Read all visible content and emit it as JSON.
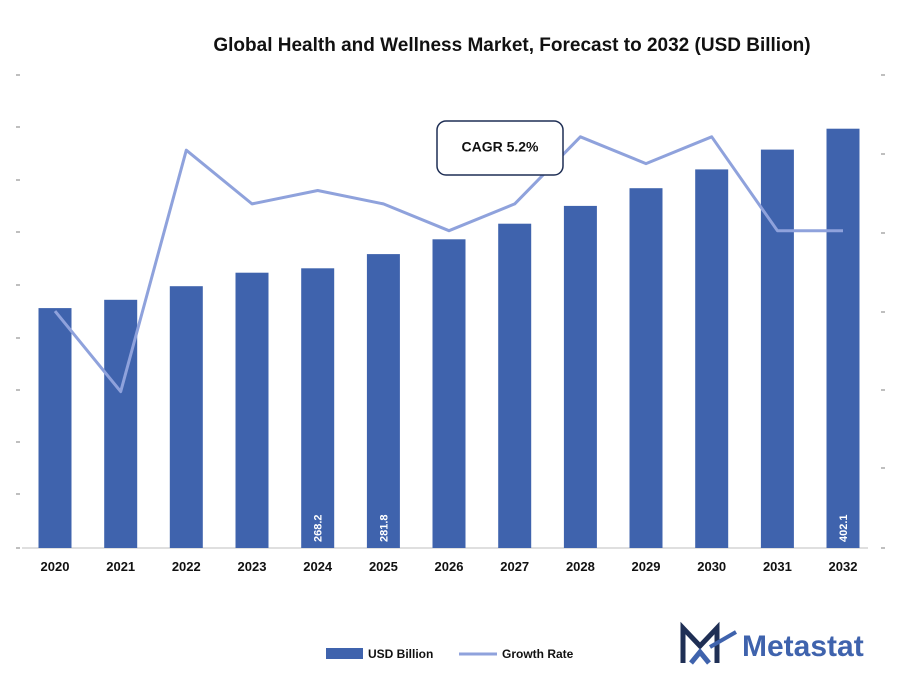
{
  "chart_data": {
    "type": "bar",
    "title": "Global Health and Wellness Market, Forecast to 2032 (USD Billion)",
    "xlabel": "",
    "ylabel": "",
    "categories": [
      "2020",
      "2021",
      "2022",
      "2023",
      "2024",
      "2025",
      "2026",
      "2027",
      "2028",
      "2029",
      "2030",
      "2031",
      "2032"
    ],
    "series": [
      {
        "name": "USD Billion",
        "kind": "bar",
        "color": "#3f63ad",
        "values": [
          230.0,
          238.0,
          251.0,
          264.0,
          268.2,
          281.8,
          296.0,
          311.0,
          328.0,
          345.0,
          363.0,
          382.0,
          402.1
        ],
        "data_labels": {
          "4": "268.2",
          "5": "281.8",
          "12": "402.1"
        }
      },
      {
        "name": "Growth Rate",
        "kind": "line",
        "color": "#8fa2dc",
        "values": [
          4.7,
          4.1,
          5.9,
          5.5,
          5.6,
          5.5,
          5.3,
          5.5,
          6.0,
          5.8,
          6.0,
          5.3,
          5.3
        ]
      }
    ],
    "ylim_bar": [
      0,
      420
    ],
    "ylim_line": [
      0,
      8
    ],
    "grid": false,
    "legend_position": "bottom",
    "annotation": "CAGR 5.2%"
  },
  "brand": {
    "name": "Metastat",
    "color": "#3f63ad"
  }
}
